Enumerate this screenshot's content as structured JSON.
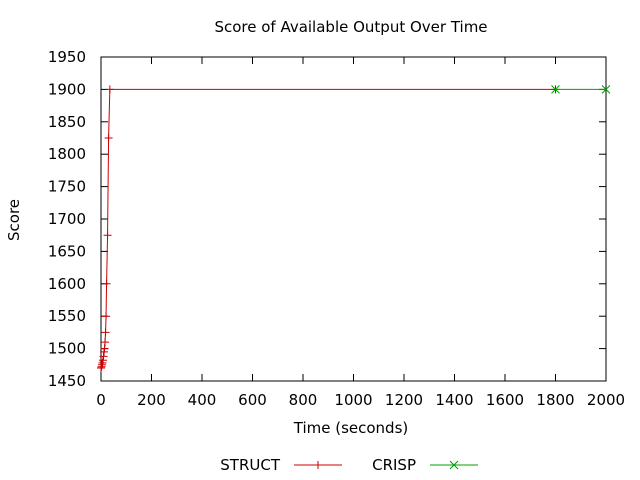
{
  "chart_data": {
    "type": "line",
    "title": "Score of Available Output Over Time",
    "xlabel": "Time (seconds)",
    "ylabel": "Score",
    "xlim": [
      0,
      2000
    ],
    "ylim": [
      1450,
      1950
    ],
    "x_ticks": [
      0,
      200,
      400,
      600,
      800,
      1000,
      1200,
      1400,
      1600,
      1800,
      2000
    ],
    "y_ticks": [
      1450,
      1500,
      1550,
      1600,
      1650,
      1700,
      1750,
      1800,
      1850,
      1900,
      1950
    ],
    "grid": false,
    "legend_position": "bottom",
    "series": [
      {
        "name": "STRUCT",
        "color": "#cc0000",
        "marker": "plus",
        "points": [
          [
            0,
            1470
          ],
          [
            2,
            1472
          ],
          [
            4,
            1475
          ],
          [
            6,
            1478
          ],
          [
            8,
            1482
          ],
          [
            10,
            1488
          ],
          [
            12,
            1495
          ],
          [
            14,
            1500
          ],
          [
            16,
            1510
          ],
          [
            18,
            1525
          ],
          [
            20,
            1550
          ],
          [
            22,
            1600
          ],
          [
            26,
            1675
          ],
          [
            30,
            1825
          ],
          [
            35,
            1900
          ],
          [
            1800,
            1900
          ]
        ]
      },
      {
        "name": "CRISP",
        "color": "#00a000",
        "marker": "x",
        "points": [
          [
            1800,
            1900
          ],
          [
            2000,
            1900
          ]
        ]
      }
    ]
  }
}
